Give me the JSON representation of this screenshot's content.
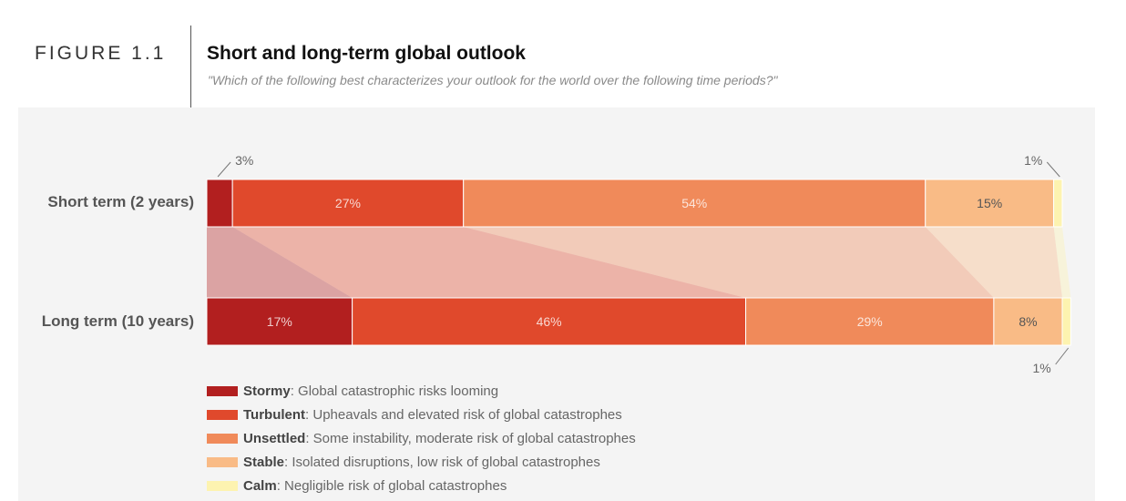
{
  "header": {
    "figure_label": "FIGURE 1.1",
    "title": "Short and long-term global outlook",
    "subtitle": "\"Which of the following best characterizes your outlook for the world over the following time periods?\""
  },
  "chart_data": {
    "type": "bar",
    "orientation": "horizontal",
    "stacked": true,
    "normalized_percent": true,
    "title": "Short and long-term global outlook",
    "categories": [
      "Short term (2 years)",
      "Long term (10 years)"
    ],
    "series": [
      {
        "name": "Stormy",
        "values": [
          3,
          17
        ],
        "labels": [
          "3%",
          "17%"
        ],
        "color": "#b21f1f"
      },
      {
        "name": "Turbulent",
        "values": [
          27,
          46
        ],
        "labels": [
          "27%",
          "46%"
        ],
        "color": "#e0492c"
      },
      {
        "name": "Unsettled",
        "values": [
          54,
          29
        ],
        "labels": [
          "54%",
          "29%"
        ],
        "color": "#f08a5a"
      },
      {
        "name": "Stable",
        "values": [
          15,
          8
        ],
        "labels": [
          "15%",
          "8%"
        ],
        "color": "#f9bb86"
      },
      {
        "name": "Calm",
        "values": [
          1,
          1
        ],
        "labels": [
          "1%",
          "1%"
        ],
        "color": "#fdf3b0"
      }
    ],
    "xlim": [
      0,
      100
    ],
    "grid": false,
    "legend_position": "bottom-left"
  },
  "legend": [
    {
      "name": "Stormy",
      "desc": ": Global catastrophic risks looming"
    },
    {
      "name": "Turbulent",
      "desc": ": Upheavals and elevated risk of global catastrophes"
    },
    {
      "name": "Unsettled",
      "desc": ": Some instability, moderate risk of global catastrophes"
    },
    {
      "name": "Stable",
      "desc": ": Isolated disruptions, low risk of global catastrophes"
    },
    {
      "name": "Calm",
      "desc": ": Negligible risk of global catastrophes"
    }
  ]
}
